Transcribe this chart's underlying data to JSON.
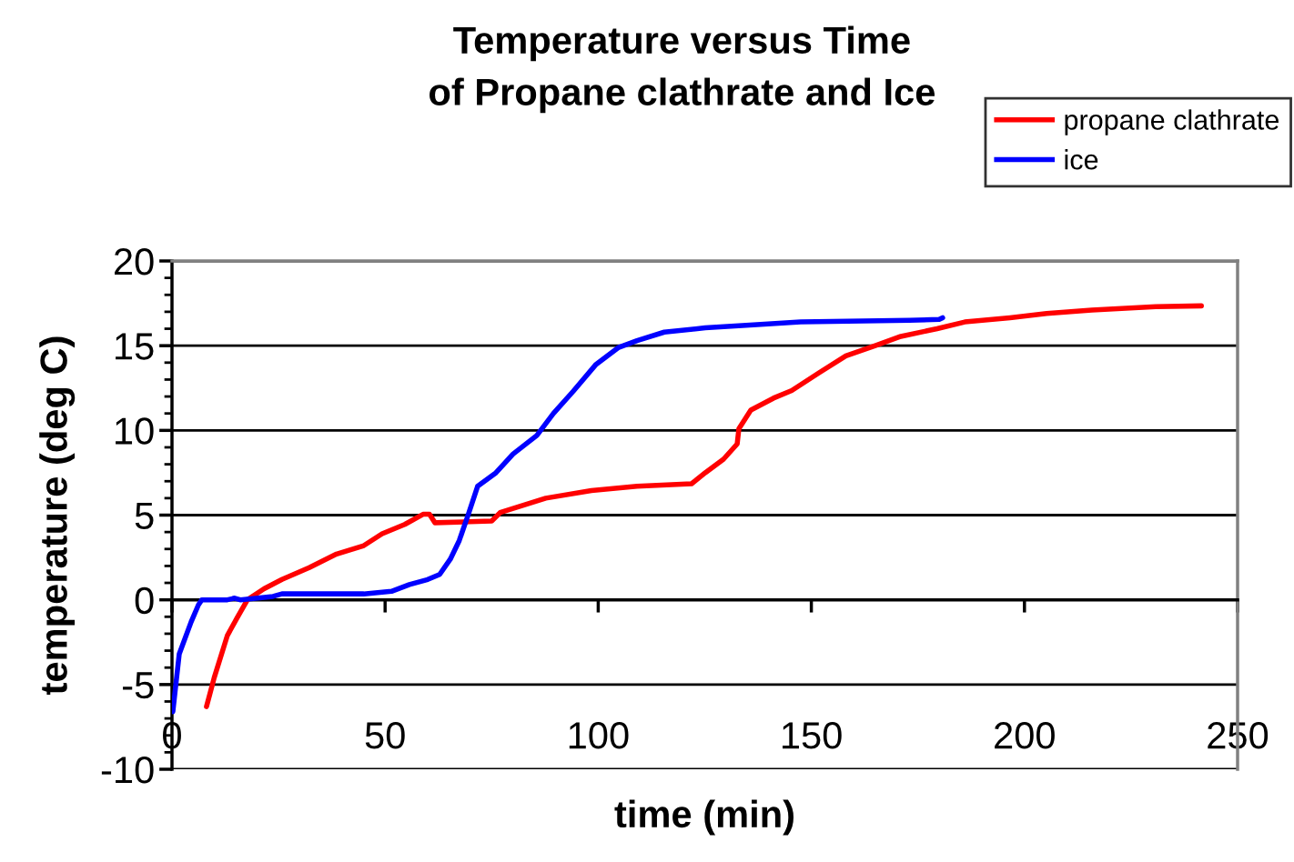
{
  "chart_data": {
    "type": "line",
    "title": "Temperature versus Time\nof Propane clathrate and Ice",
    "xlabel": "time (min)",
    "ylabel": "temperature (deg C)",
    "xlim": [
      0,
      250
    ],
    "xticks": [
      0,
      50,
      100,
      150,
      200,
      250
    ],
    "ylim": [
      -10,
      20
    ],
    "yticks": [
      -10,
      -5,
      0,
      5,
      10,
      15,
      20
    ],
    "grid": "y",
    "legend": "top right",
    "marker": "none",
    "line_style": "solid",
    "series": [
      {
        "name": "propane clathrate",
        "color": "#ff0000",
        "x": [
          8.1,
          9.9,
          13,
          15.2,
          17.7,
          21.6,
          25.8,
          32.2,
          38.6,
          45,
          49.3,
          54.6,
          58.9,
          60.4,
          61.7,
          75,
          77,
          87.7,
          98.4,
          109.1,
          121.9,
          125.1,
          129.4,
          132.6,
          133,
          135.8,
          141.1,
          145.4,
          151.8,
          158.1,
          165,
          171,
          179.5,
          186,
          196.6,
          205.2,
          215.8,
          230.8,
          241.5
        ],
        "values": [
          -6.3,
          -4.6,
          -2.1,
          -1.1,
          0,
          0.65,
          1.2,
          1.9,
          2.7,
          3.2,
          3.9,
          4.45,
          5.05,
          5.05,
          4.55,
          4.65,
          5.15,
          6.0,
          6.45,
          6.7,
          6.85,
          7.5,
          8.3,
          9.2,
          10.1,
          11.2,
          11.9,
          12.35,
          13.4,
          14.4,
          15.0,
          15.55,
          16.0,
          16.4,
          16.65,
          16.9,
          17.1,
          17.3,
          17.35
        ]
      },
      {
        "name": "ice",
        "color": "#0000ff",
        "x": [
          0.2,
          1.7,
          4.5,
          6.2,
          7,
          13,
          14.7,
          16,
          23.7,
          25.8,
          45,
          51.5,
          55.7,
          60,
          62.8,
          65.3,
          67.4,
          69.6,
          71.7,
          76,
          80,
          85.6,
          89.5,
          94.1,
          99.5,
          104.8,
          109.1,
          115.5,
          125.1,
          134.7,
          147.5,
          173,
          180,
          180.8
        ],
        "values": [
          -6.6,
          -3.2,
          -1.3,
          -0.3,
          0,
          0,
          0.1,
          0,
          0.2,
          0.35,
          0.35,
          0.5,
          0.9,
          1.2,
          1.5,
          2.4,
          3.5,
          5.1,
          6.7,
          7.5,
          8.6,
          9.7,
          11.0,
          12.3,
          13.9,
          14.9,
          15.3,
          15.8,
          16.05,
          16.2,
          16.4,
          16.5,
          16.55,
          16.65
        ]
      }
    ]
  }
}
